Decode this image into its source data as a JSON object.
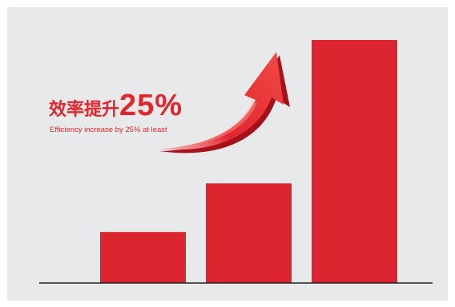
{
  "headline": {
    "cn_text": "效率提升",
    "percent_text": "25%"
  },
  "subheadline": "Efficiency increase by 25% at least",
  "colors": {
    "bar": "#dd2530",
    "arrow_light": "#f2574f",
    "arrow_dark": "#b8131d",
    "text": "#e1262d",
    "background": "#e8e9ea",
    "axis": "#222222"
  },
  "chart_data": {
    "type": "bar",
    "categories": [
      "",
      "",
      ""
    ],
    "values": [
      21,
      41,
      100
    ],
    "ylim": [
      0,
      100
    ],
    "title": "",
    "xlabel": "",
    "ylabel": "",
    "grid": false,
    "legend": "none",
    "annotation": "upward-arrow-icon"
  }
}
